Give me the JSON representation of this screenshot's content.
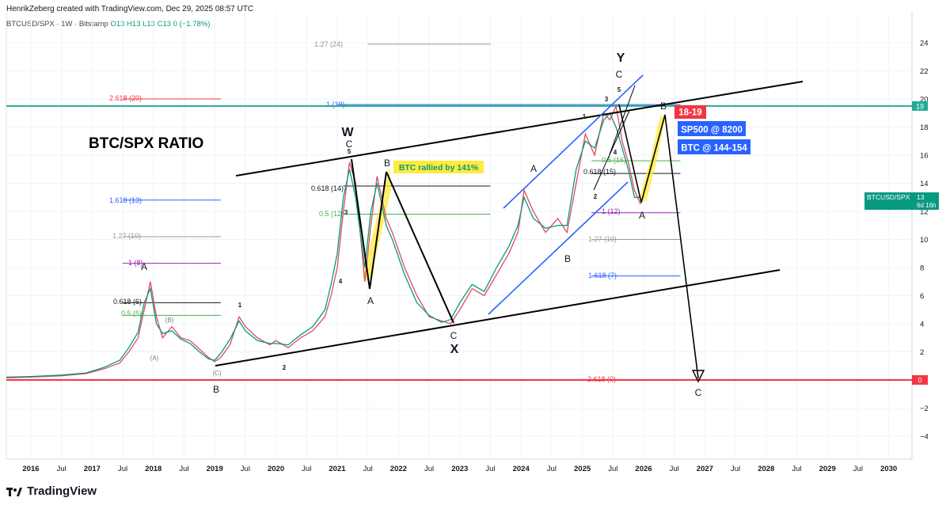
{
  "header": {
    "credit": "HenrikZeberg created with TradingView.com, Dec 29, 2025 08:57 UTC",
    "symbol": "BTCUSD/SPX · 1W · Bitstamp",
    "ohlc": "O13 H13 L13 C13 0 (+1.78%)"
  },
  "branding": {
    "name": "TradingView"
  },
  "chart_data": {
    "type": "line",
    "title": "BTC/SPX RATIO",
    "ylim": [
      -5.5,
      25.5
    ],
    "y_ticks": [
      24,
      22,
      20,
      18,
      16,
      14,
      12,
      10,
      8,
      6,
      4,
      2,
      0,
      -2,
      -4
    ],
    "y_tick_labels": [
      "24",
      "22",
      "20",
      "18",
      "16",
      "14",
      "12",
      "10",
      "8",
      "6",
      "4",
      "2",
      "0",
      "−2",
      "−4"
    ],
    "x_ticks": [
      2016,
      2016.5,
      2017,
      2017.5,
      2018,
      2018.5,
      2019,
      2019.5,
      2020,
      2020.5,
      2021,
      2021.5,
      2022,
      2022.5,
      2023,
      2023.5,
      2024,
      2024.5,
      2025,
      2025.5,
      2026,
      2026.5,
      2027,
      2027.5,
      2028,
      2028.5,
      2029,
      2029.5,
      2030
    ],
    "x_tick_labels": [
      "2016",
      "Jul",
      "2017",
      "Jul",
      "2018",
      "Jul",
      "2019",
      "Jul",
      "2020",
      "Jul",
      "2021",
      "Jul",
      "2022",
      "Jul",
      "2023",
      "Jul",
      "2024",
      "Jul",
      "2025",
      "Jul",
      "2026",
      "Jul",
      "2027",
      "Jul",
      "2028",
      "Jul",
      "2029",
      "Jul",
      "2030"
    ],
    "series": [
      {
        "color": "#e04b57",
        "x": [
          2015.6,
          2016.0,
          2016.5,
          2016.9,
          2017.2,
          2017.45,
          2017.6,
          2017.75,
          2017.85,
          2017.95,
          2018.05,
          2018.15,
          2018.3,
          2018.45,
          2018.6,
          2018.75,
          2018.9,
          2019.0,
          2019.1,
          2019.25,
          2019.4,
          2019.5,
          2019.7,
          2019.9,
          2020.0,
          2020.2,
          2020.4,
          2020.6,
          2020.8,
          2020.9,
          2021.0,
          2021.1,
          2021.2,
          2021.3,
          2021.45,
          2021.55,
          2021.65,
          2021.8,
          2021.9,
          2022.1,
          2022.3,
          2022.5,
          2022.7,
          2022.85,
          2023.0,
          2023.2,
          2023.4,
          2023.6,
          2023.8,
          2023.95,
          2024.05,
          2024.2,
          2024.4,
          2024.6,
          2024.75,
          2024.9,
          2025.05,
          2025.2,
          2025.35,
          2025.45,
          2025.55,
          2025.65,
          2025.75,
          2025.85,
          2025.95
        ],
        "values": [
          0.15,
          0.2,
          0.3,
          0.45,
          0.8,
          1.2,
          2.0,
          3.0,
          5.0,
          7.0,
          4.5,
          3.0,
          3.8,
          3.0,
          2.8,
          2.2,
          1.6,
          1.3,
          1.6,
          2.5,
          4.5,
          3.8,
          3.0,
          2.5,
          2.8,
          2.3,
          3.0,
          3.5,
          4.5,
          6.0,
          8.0,
          12.0,
          15.5,
          14.0,
          7.0,
          11.0,
          14.5,
          11.5,
          10.5,
          8.0,
          6.0,
          4.5,
          4.2,
          4.0,
          5.0,
          6.5,
          6.0,
          7.5,
          9.0,
          10.5,
          13.5,
          12.0,
          10.5,
          11.5,
          10.5,
          14.0,
          17.5,
          16.0,
          19.0,
          18.5,
          19.5,
          17.0,
          15.5,
          13.5,
          12.5
        ]
      },
      {
        "color": "#089981",
        "x": [
          2015.6,
          2016.0,
          2016.5,
          2016.9,
          2017.2,
          2017.45,
          2017.6,
          2017.75,
          2017.85,
          2017.95,
          2018.05,
          2018.15,
          2018.3,
          2018.45,
          2018.6,
          2018.75,
          2018.9,
          2019.0,
          2019.1,
          2019.25,
          2019.4,
          2019.5,
          2019.7,
          2019.9,
          2020.0,
          2020.2,
          2020.4,
          2020.6,
          2020.8,
          2020.9,
          2021.0,
          2021.1,
          2021.2,
          2021.3,
          2021.45,
          2021.55,
          2021.65,
          2021.8,
          2021.9,
          2022.1,
          2022.3,
          2022.5,
          2022.7,
          2022.85,
          2023.0,
          2023.2,
          2023.4,
          2023.6,
          2023.8,
          2023.95,
          2024.05,
          2024.2,
          2024.4,
          2024.6,
          2024.75,
          2024.9,
          2025.05,
          2025.2,
          2025.35,
          2025.45,
          2025.55,
          2025.65,
          2025.75,
          2025.85,
          2025.95
        ],
        "values": [
          0.2,
          0.25,
          0.35,
          0.5,
          0.9,
          1.4,
          2.3,
          3.4,
          5.5,
          6.5,
          4.0,
          3.3,
          3.5,
          2.9,
          2.6,
          2.0,
          1.5,
          1.4,
          1.9,
          2.9,
          4.2,
          3.5,
          2.8,
          2.6,
          2.6,
          2.5,
          3.2,
          3.8,
          5.0,
          6.8,
          9.0,
          13.0,
          15.0,
          13.0,
          8.0,
          12.0,
          14.0,
          11.0,
          10.0,
          7.5,
          5.5,
          4.6,
          4.1,
          4.3,
          5.5,
          6.8,
          6.3,
          8.0,
          9.5,
          11.0,
          13.0,
          11.5,
          10.8,
          11.0,
          11.0,
          15.0,
          17.0,
          16.5,
          18.5,
          19.0,
          18.0,
          16.5,
          15.0,
          13.0,
          13.0
        ]
      }
    ],
    "last_value_label": "BTCUSD/SPX",
    "last_value": "13",
    "countdown": "6d 16h",
    "horizontal_levels": [
      {
        "label": "0",
        "value": 0,
        "color": "#f23645"
      },
      {
        "label": "19",
        "value": 19.5,
        "color": "#22ab94"
      }
    ],
    "boxes": [
      {
        "text": "18-19",
        "color": "#f23645"
      },
      {
        "text": "SP500 @ 8200",
        "color": "#2962ff"
      },
      {
        "text": "BTC @ 144-154",
        "color": "#2962ff"
      }
    ],
    "wave_labels": [
      "W",
      "X",
      "Y",
      "A",
      "B",
      "C",
      "1",
      "2",
      "3",
      "4",
      "5",
      "(A)",
      "(B)",
      "(C)"
    ],
    "fib_labels": [
      {
        "text": "1.27 (24)",
        "color": "#9598a1"
      },
      {
        "text": "2.618 (20)",
        "color": "#f23645"
      },
      {
        "text": "1 (19)",
        "color": "#2962ff"
      },
      {
        "text": "1.618 (13)",
        "color": "#2962ff"
      },
      {
        "text": "1.27 (10)",
        "color": "#9598a1"
      },
      {
        "text": "1 (8)",
        "color": "#9c27b0"
      },
      {
        "text": "0.618 (6)",
        "color": "#131722"
      },
      {
        "text": "0.5 (5)",
        "color": "#4caf50"
      },
      {
        "text": "0.618 (14)",
        "color": "#131722"
      },
      {
        "text": "0.5 (12)",
        "color": "#4caf50"
      },
      {
        "text": "0.5 (16)",
        "color": "#4caf50"
      },
      {
        "text": "0.618 (15)",
        "color": "#131722"
      },
      {
        "text": "1 (12)",
        "color": "#9c27b0"
      },
      {
        "text": "1.27 (10)",
        "color": "#9598a1"
      },
      {
        "text": "1.618 (7)",
        "color": "#2962ff"
      },
      {
        "text": "2.618 (0)",
        "color": "#f23645"
      }
    ],
    "annotation": "BTC rallied by 141%"
  }
}
